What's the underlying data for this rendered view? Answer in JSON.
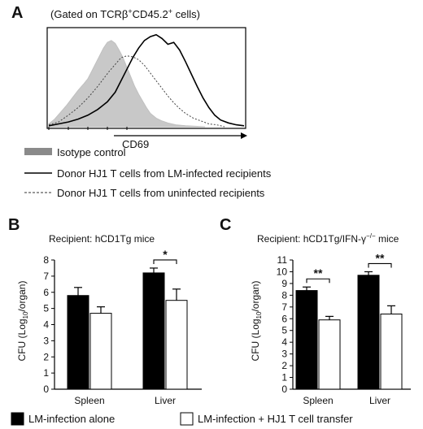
{
  "panel_a": {
    "letter": "A",
    "gate_prefix": "(Gated on TCR",
    "gate_beta": "β",
    "gate_plus1": "+",
    "gate_mid": "CD45.2",
    "gate_plus2": "+",
    "gate_suffix": " cells)",
    "xlabel": "CD69",
    "legend": [
      {
        "label": "Isotype control",
        "style": "filled-gray",
        "color": "#c8c8c8"
      },
      {
        "label": "Donor HJ1 T cells from LM-infected recipients",
        "style": "solid",
        "color": "#000000"
      },
      {
        "label": "Donor HJ1 T cells from uninfected recipients",
        "style": "dashed",
        "color": "#444444"
      }
    ]
  },
  "panel_b": {
    "letter": "B",
    "recipient": "Recipient: hCD1Tg mice",
    "ylabel_pre": "CFU (Log",
    "ylabel_sub": "10",
    "ylabel_post": "/organ)",
    "sig": "*"
  },
  "panel_c": {
    "letter": "C",
    "recipient_pre": "Recipient: hCD1Tg/IFN-γ",
    "recipient_sup": "−/−",
    "recipient_post": " mice",
    "ylabel_pre": "CFU (Log",
    "ylabel_sub": "10",
    "ylabel_post": "/organ)",
    "sig_spleen": "**",
    "sig_liver": "**"
  },
  "bottom_legend": [
    {
      "label": "LM-infection alone",
      "color": "#000000"
    },
    {
      "label": "LM-infection + HJ1 T cell transfer",
      "color": "#ffffff"
    }
  ],
  "chart_data": [
    {
      "type": "area",
      "title": "(Gated on TCRβ+CD45.2+ cells)",
      "xlabel": "CD69",
      "ylabel": "",
      "series": [
        {
          "name": "Isotype control",
          "x": [
            0,
            0.03,
            0.06,
            0.09,
            0.12,
            0.15,
            0.18,
            0.2,
            0.22,
            0.24,
            0.26,
            0.28,
            0.3,
            0.32,
            0.34,
            0.36,
            0.38,
            0.4,
            0.42,
            0.44,
            0.46,
            0.48,
            0.5,
            0.52,
            0.55,
            0.58,
            0.61,
            0.65,
            0.7,
            0.8
          ],
          "y": [
            0.03,
            0.08,
            0.15,
            0.22,
            0.3,
            0.38,
            0.45,
            0.5,
            0.58,
            0.66,
            0.74,
            0.82,
            0.88,
            0.9,
            0.87,
            0.8,
            0.72,
            0.62,
            0.52,
            0.42,
            0.34,
            0.27,
            0.2,
            0.14,
            0.09,
            0.06,
            0.04,
            0.02,
            0.01,
            0
          ]
        },
        {
          "name": "Donor HJ1 T cells from LM-infected recipients",
          "x": [
            0,
            0.05,
            0.1,
            0.15,
            0.2,
            0.25,
            0.3,
            0.34,
            0.37,
            0.4,
            0.43,
            0.46,
            0.49,
            0.52,
            0.55,
            0.58,
            0.61,
            0.64,
            0.67,
            0.7,
            0.73,
            0.76,
            0.79,
            0.82,
            0.85,
            0.88,
            0.92,
            0.96,
            1.0
          ],
          "y": [
            0.01,
            0.03,
            0.05,
            0.08,
            0.12,
            0.18,
            0.26,
            0.36,
            0.48,
            0.6,
            0.72,
            0.82,
            0.9,
            0.94,
            0.96,
            0.92,
            0.86,
            0.88,
            0.8,
            0.68,
            0.55,
            0.42,
            0.3,
            0.2,
            0.12,
            0.07,
            0.04,
            0.02,
            0.01
          ]
        },
        {
          "name": "Donor HJ1 T cells from uninfected recipients",
          "x": [
            0,
            0.05,
            0.1,
            0.15,
            0.2,
            0.25,
            0.28,
            0.31,
            0.34,
            0.37,
            0.4,
            0.43,
            0.46,
            0.49,
            0.52,
            0.55,
            0.58,
            0.61,
            0.64,
            0.67,
            0.7,
            0.74,
            0.78,
            0.82,
            0.86,
            0.9
          ],
          "y": [
            0.02,
            0.05,
            0.12,
            0.2,
            0.3,
            0.42,
            0.5,
            0.58,
            0.65,
            0.72,
            0.74,
            0.73,
            0.7,
            0.64,
            0.56,
            0.48,
            0.4,
            0.32,
            0.25,
            0.19,
            0.14,
            0.09,
            0.06,
            0.03,
            0.02,
            0
          ]
        }
      ]
    },
    {
      "type": "bar",
      "title": "Recipient: hCD1Tg mice",
      "xlabel": "",
      "ylabel": "CFU (Log10/organ)",
      "categories": [
        "Spleen",
        "Liver"
      ],
      "ylim": [
        0,
        8
      ],
      "yticks": [
        0,
        1,
        2,
        3,
        4,
        5,
        6,
        7,
        8
      ],
      "series": [
        {
          "name": "LM-infection alone",
          "values": [
            5.8,
            7.2
          ],
          "errors": [
            0.5,
            0.3
          ]
        },
        {
          "name": "LM-infection + HJ1 T cell transfer",
          "values": [
            4.7,
            5.5
          ],
          "errors": [
            0.4,
            0.7
          ]
        }
      ],
      "significance": [
        {
          "category": "Liver",
          "label": "*"
        }
      ]
    },
    {
      "type": "bar",
      "title": "Recipient: hCD1Tg/IFN-γ−/− mice",
      "xlabel": "",
      "ylabel": "CFU (Log10/organ)",
      "categories": [
        "Spleen",
        "Liver"
      ],
      "ylim": [
        0,
        11
      ],
      "yticks": [
        0,
        1,
        2,
        3,
        4,
        5,
        6,
        7,
        8,
        9,
        10,
        11
      ],
      "series": [
        {
          "name": "LM-infection alone",
          "values": [
            8.4,
            9.7
          ],
          "errors": [
            0.3,
            0.3
          ]
        },
        {
          "name": "LM-infection + HJ1 T cell transfer",
          "values": [
            5.9,
            6.4
          ],
          "errors": [
            0.3,
            0.7
          ]
        }
      ],
      "significance": [
        {
          "category": "Spleen",
          "label": "**"
        },
        {
          "category": "Liver",
          "label": "**"
        }
      ]
    }
  ]
}
